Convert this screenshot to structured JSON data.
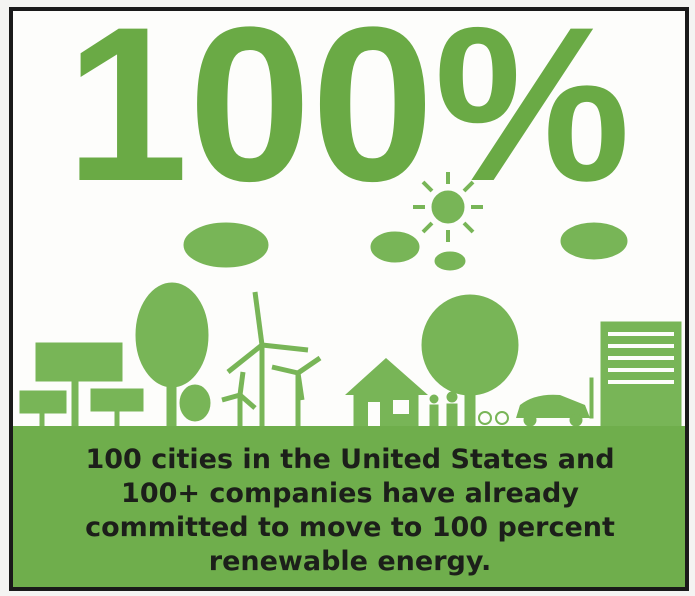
{
  "headline": "100%",
  "caption": {
    "lines": [
      "100 cities in the United States and",
      "100+ companies have already",
      "committed to move to 100 percent",
      "renewable energy."
    ]
  }
}
